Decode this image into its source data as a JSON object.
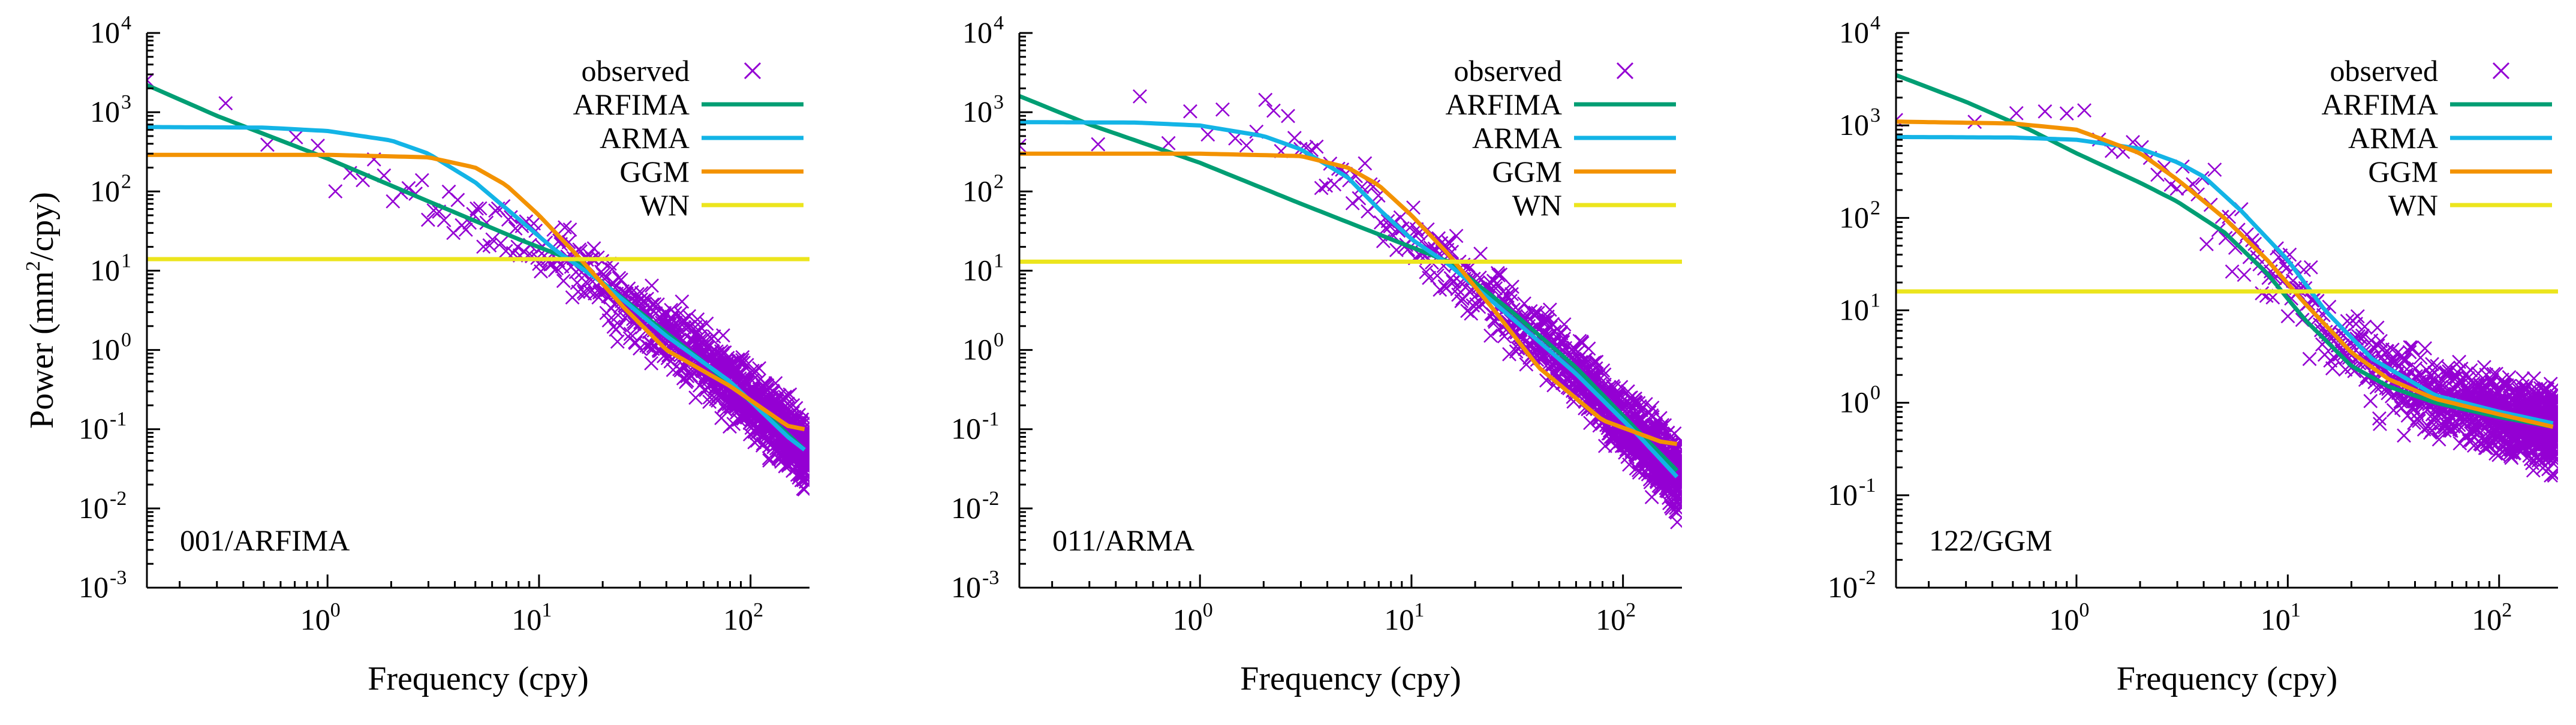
{
  "figure_title": "",
  "colors": {
    "observed": "#9400d3",
    "ARFIMA": "#009e73",
    "ARMA": "#13b4e6",
    "GGM": "#f39200",
    "WN": "#ece51d",
    "axis": "#000000"
  },
  "chart_data": [
    {
      "type": "line",
      "scale": "log-log",
      "annotation": "001/ARFIMA",
      "xlabel": "Frequency (cpy)",
      "ylabel": "Power (mm2/cpy)",
      "ylabel_parts": {
        "pre": "Power (mm",
        "sup": "2",
        "post": "/cpy)"
      },
      "xlim": [
        0.14,
        190
      ],
      "ylim": [
        0.001,
        10000
      ],
      "xticks": [
        {
          "base": "10",
          "exp": "0",
          "value": 1
        },
        {
          "base": "10",
          "exp": "1",
          "value": 10
        },
        {
          "base": "10",
          "exp": "2",
          "value": 100
        }
      ],
      "yticks": [
        {
          "base": "10",
          "exp": "-3",
          "value": 0.001
        },
        {
          "base": "10",
          "exp": "-2",
          "value": 0.01
        },
        {
          "base": "10",
          "exp": "-1",
          "value": 0.1
        },
        {
          "base": "10",
          "exp": "0",
          "value": 1
        },
        {
          "base": "10",
          "exp": "1",
          "value": 10
        },
        {
          "base": "10",
          "exp": "2",
          "value": 100
        },
        {
          "base": "10",
          "exp": "3",
          "value": 1000
        },
        {
          "base": "10",
          "exp": "4",
          "value": 10000
        }
      ],
      "legend": [
        "observed",
        "ARFIMA",
        "ARMA",
        "GGM",
        "WN"
      ],
      "legend_position": "top-right",
      "series": [
        {
          "name": "ARFIMA",
          "x": [
            0.14,
            0.3,
            1,
            3,
            8,
            15,
            30,
            60,
            120,
            180
          ],
          "y": [
            2200,
            900,
            260,
            75,
            25,
            13,
            3,
            0.7,
            0.15,
            0.055
          ]
        },
        {
          "name": "ARMA",
          "x": [
            0.14,
            0.5,
            1,
            2,
            3,
            5,
            8,
            12,
            20,
            40,
            80,
            150,
            180
          ],
          "y": [
            650,
            640,
            580,
            440,
            300,
            130,
            45,
            18,
            7,
            1.5,
            0.4,
            0.08,
            0.055
          ]
        },
        {
          "name": "GGM",
          "x": [
            0.14,
            1,
            3,
            5,
            7,
            10,
            15,
            25,
            40,
            80,
            150,
            180
          ],
          "y": [
            290,
            290,
            270,
            200,
            120,
            50,
            16,
            3.5,
            1,
            0.35,
            0.11,
            0.1
          ]
        },
        {
          "name": "WN",
          "x": [
            0.14,
            190
          ],
          "y": [
            14,
            14
          ]
        }
      ],
      "observed": {
        "name": "observed",
        "generator": {
          "start": 0.14,
          "end": 190,
          "count": 1000,
          "scatter_dex": 0.3,
          "follows": "ARFIMA",
          "seed": 11
        }
      }
    },
    {
      "type": "line",
      "scale": "log-log",
      "annotation": "011/ARMA",
      "xlabel": "Frequency (cpy)",
      "xlim": [
        0.14,
        190
      ],
      "ylim": [
        0.001,
        10000
      ],
      "xticks": [
        {
          "base": "10",
          "exp": "0",
          "value": 1
        },
        {
          "base": "10",
          "exp": "1",
          "value": 10
        },
        {
          "base": "10",
          "exp": "2",
          "value": 100
        }
      ],
      "yticks": [
        {
          "base": "10",
          "exp": "-3",
          "value": 0.001
        },
        {
          "base": "10",
          "exp": "-2",
          "value": 0.01
        },
        {
          "base": "10",
          "exp": "-1",
          "value": 0.1
        },
        {
          "base": "10",
          "exp": "0",
          "value": 1
        },
        {
          "base": "10",
          "exp": "1",
          "value": 10
        },
        {
          "base": "10",
          "exp": "2",
          "value": 100
        },
        {
          "base": "10",
          "exp": "3",
          "value": 1000
        },
        {
          "base": "10",
          "exp": "4",
          "value": 10000
        }
      ],
      "legend": [
        "observed",
        "ARFIMA",
        "ARMA",
        "GGM",
        "WN"
      ],
      "legend_position": "top-right",
      "series": [
        {
          "name": "ARFIMA",
          "x": [
            0.14,
            0.3,
            1,
            3,
            8,
            15,
            30,
            60,
            120,
            180
          ],
          "y": [
            1600,
            700,
            230,
            70,
            25,
            13,
            3,
            0.6,
            0.09,
            0.03
          ]
        },
        {
          "name": "ARMA",
          "x": [
            0.14,
            0.5,
            1,
            2,
            3,
            5,
            7,
            10,
            15,
            30,
            60,
            120,
            180
          ],
          "y": [
            750,
            740,
            680,
            500,
            340,
            150,
            60,
            25,
            12,
            2.5,
            0.5,
            0.08,
            0.025
          ]
        },
        {
          "name": "GGM",
          "x": [
            0.14,
            1,
            3,
            5,
            7,
            10,
            15,
            25,
            40,
            80,
            150,
            180
          ],
          "y": [
            300,
            300,
            280,
            200,
            120,
            50,
            16,
            3,
            0.6,
            0.13,
            0.07,
            0.065
          ]
        },
        {
          "name": "WN",
          "x": [
            0.14,
            190
          ],
          "y": [
            13,
            13
          ]
        }
      ],
      "observed": {
        "name": "observed",
        "generator": {
          "start": 0.14,
          "end": 190,
          "count": 1000,
          "scatter_dex": 0.3,
          "follows": "ARMA",
          "seed": 23
        }
      }
    },
    {
      "type": "line",
      "scale": "log-log",
      "annotation": "122/GGM",
      "xlabel": "Frequency (cpy)",
      "xlim": [
        0.14,
        190
      ],
      "ylim": [
        0.01,
        10000
      ],
      "xticks": [
        {
          "base": "10",
          "exp": "0",
          "value": 1
        },
        {
          "base": "10",
          "exp": "1",
          "value": 10
        },
        {
          "base": "10",
          "exp": "2",
          "value": 100
        }
      ],
      "yticks": [
        {
          "base": "10",
          "exp": "-2",
          "value": 0.01
        },
        {
          "base": "10",
          "exp": "-1",
          "value": 0.1
        },
        {
          "base": "10",
          "exp": "0",
          "value": 1
        },
        {
          "base": "10",
          "exp": "1",
          "value": 10
        },
        {
          "base": "10",
          "exp": "2",
          "value": 100
        },
        {
          "base": "10",
          "exp": "3",
          "value": 1000
        },
        {
          "base": "10",
          "exp": "4",
          "value": 10000
        }
      ],
      "legend": [
        "observed",
        "ARFIMA",
        "ARMA",
        "GGM",
        "WN"
      ],
      "legend_position": "top-right",
      "series": [
        {
          "name": "ARFIMA",
          "x": [
            0.14,
            0.3,
            0.6,
            1,
            2,
            3,
            5,
            8,
            12,
            20,
            30,
            50,
            100,
            180
          ],
          "y": [
            3500,
            1800,
            900,
            500,
            240,
            150,
            70,
            25,
            8,
            2.5,
            1.5,
            1,
            0.7,
            0.55
          ]
        },
        {
          "name": "ARMA",
          "x": [
            0.14,
            0.5,
            1,
            2,
            3,
            4,
            6,
            10,
            15,
            25,
            50,
            100,
            180
          ],
          "y": [
            750,
            740,
            700,
            560,
            400,
            280,
            120,
            35,
            10,
            3,
            1.2,
            0.8,
            0.6
          ]
        },
        {
          "name": "GGM",
          "x": [
            0.14,
            0.5,
            1,
            2,
            3,
            5,
            8,
            12,
            20,
            30,
            50,
            100,
            180
          ],
          "y": [
            1100,
            1050,
            900,
            500,
            260,
            100,
            35,
            12,
            3.5,
            1.8,
            1.1,
            0.75,
            0.55
          ]
        },
        {
          "name": "WN",
          "x": [
            0.14,
            190
          ],
          "y": [
            16,
            16
          ]
        }
      ],
      "observed": {
        "name": "observed",
        "generator": {
          "start": 0.14,
          "end": 190,
          "count": 1000,
          "scatter_dex": 0.3,
          "follows": "GGM",
          "seed": 37
        }
      }
    }
  ]
}
